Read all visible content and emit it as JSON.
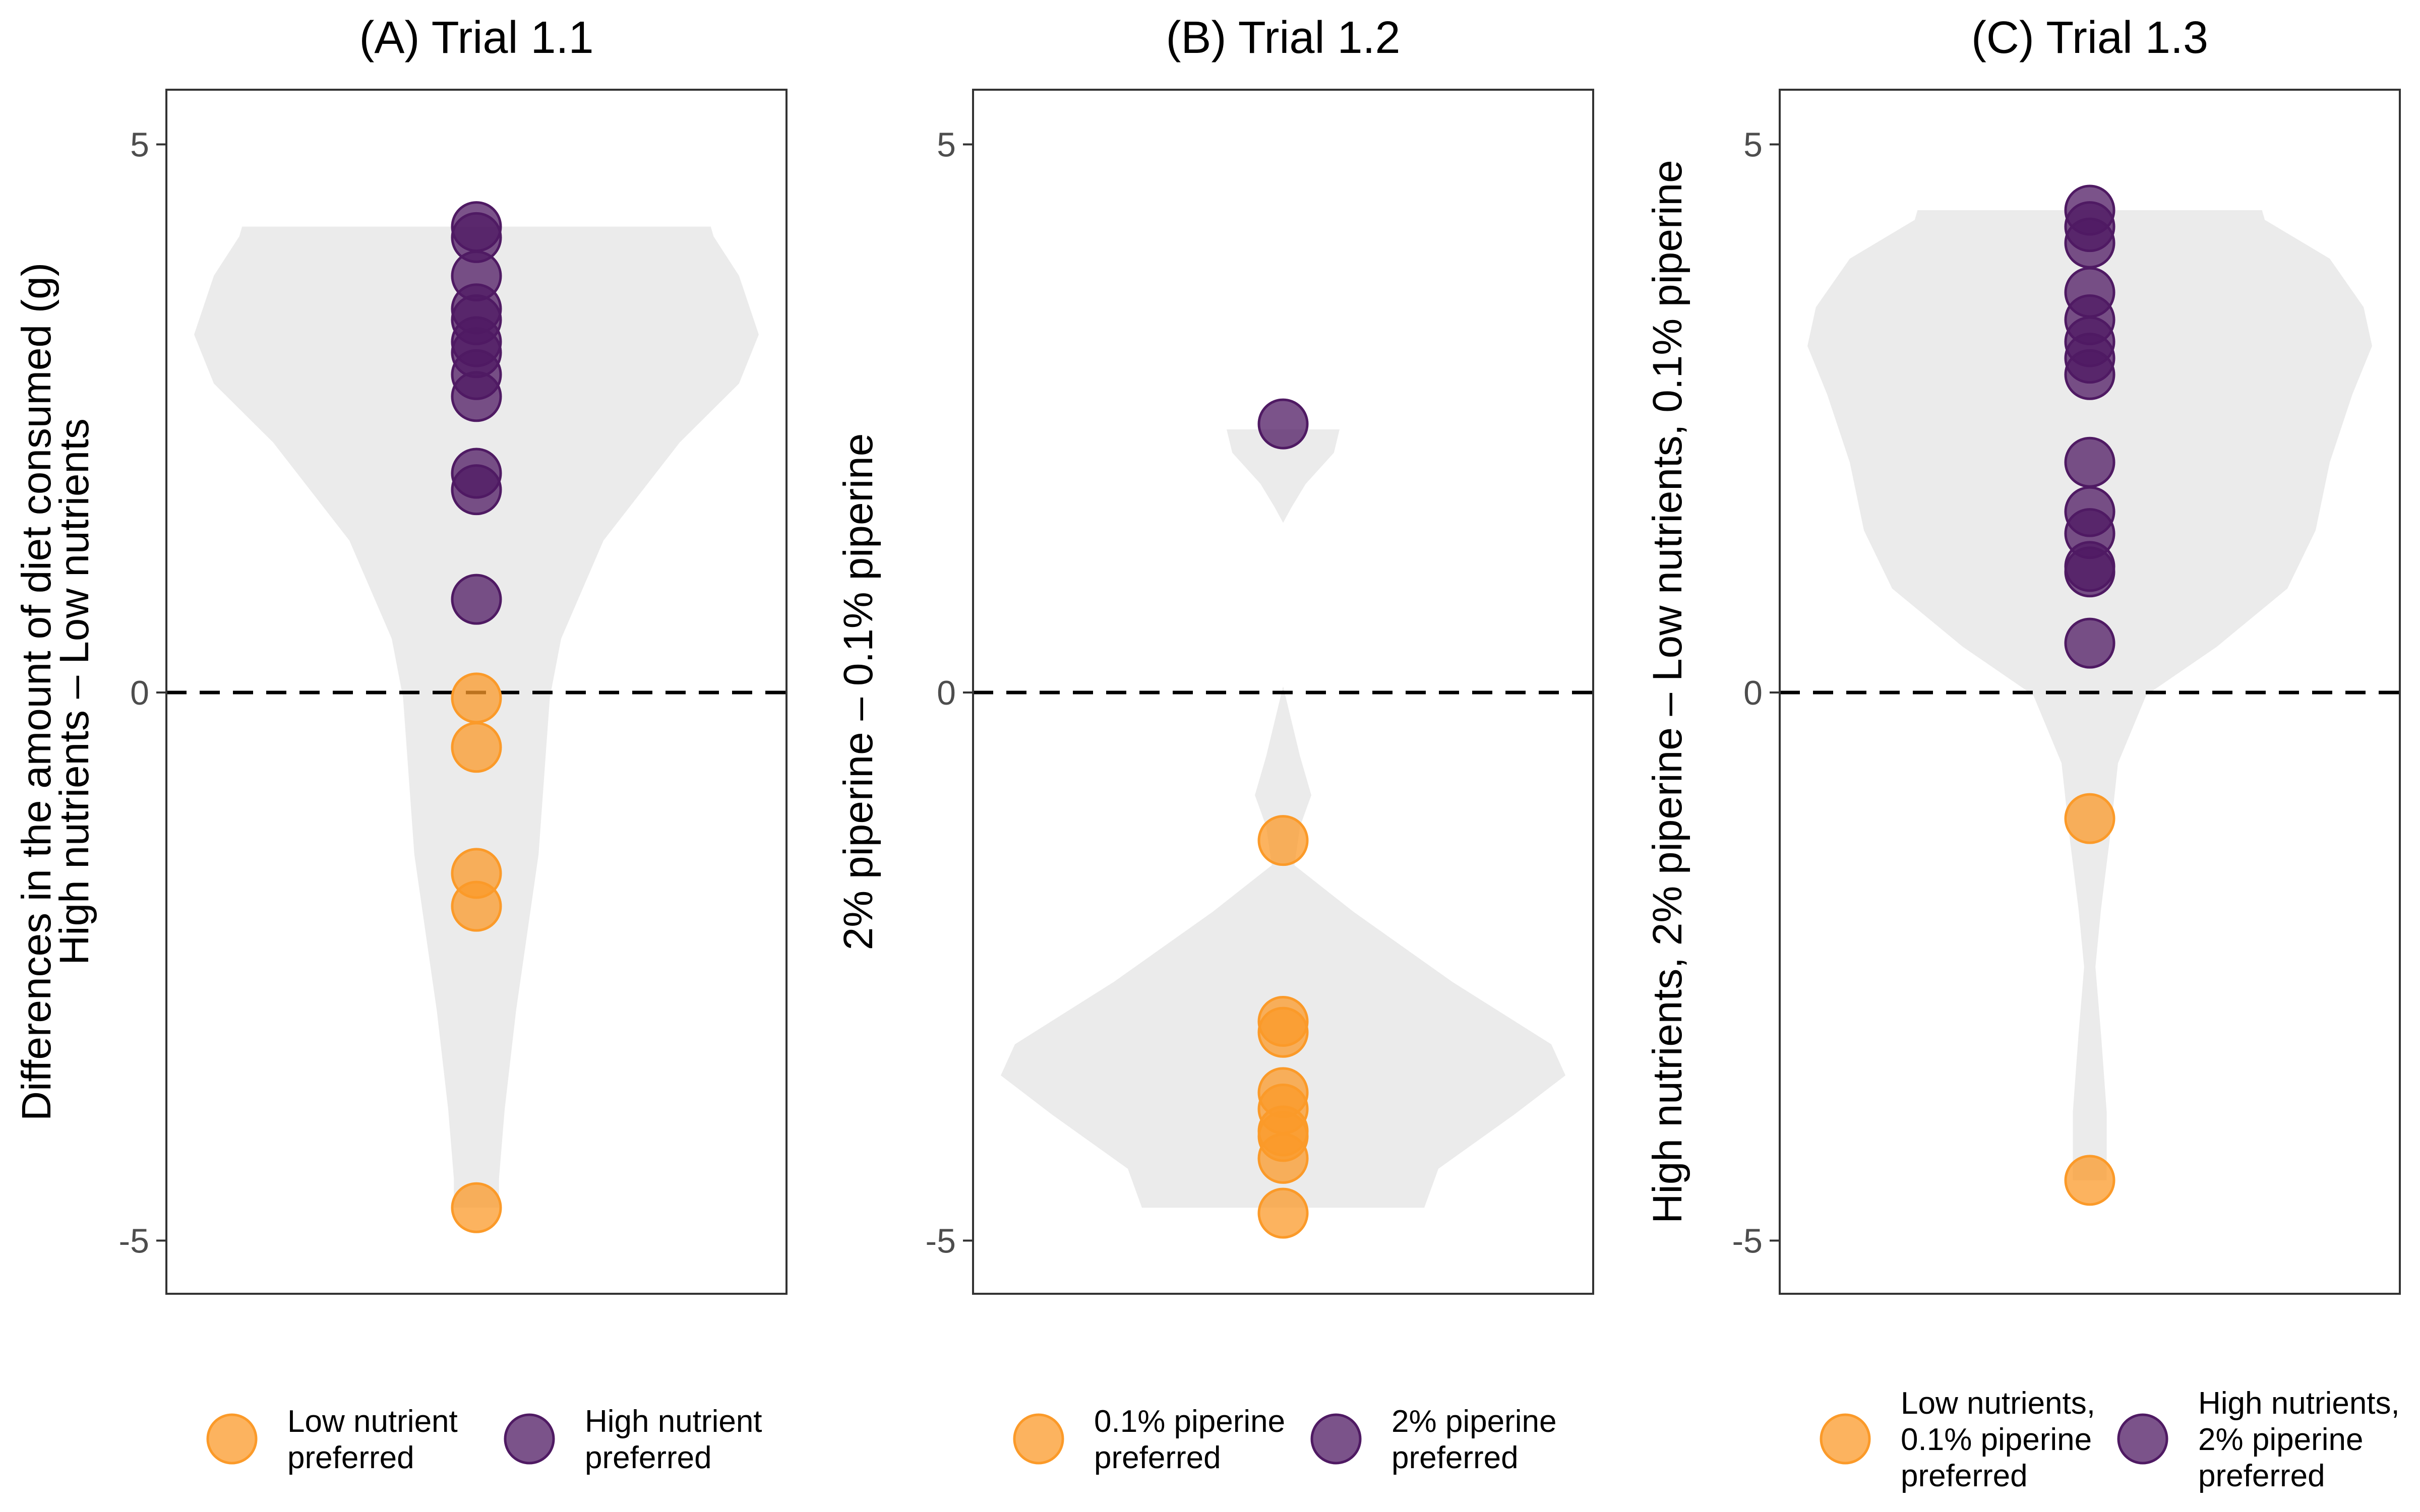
{
  "chart_data": [
    {
      "type": "scatter",
      "title": "(A) Trial 1.1",
      "ylabel": [
        "Differences in the amount of diet consumed (g)",
        "High nutrients – Low nutrients"
      ],
      "ylim": [
        -5.5,
        5.5
      ],
      "yticks": [
        5,
        0,
        -5
      ],
      "ytick_labels": [
        "5",
        "0",
        "-5"
      ],
      "reference_line": 0,
      "grid": false,
      "violin": {
        "min": -4.7,
        "max": 4.25
      },
      "points": [
        {
          "y": 4.25,
          "group": "high"
        },
        {
          "y": 4.15,
          "group": "high"
        },
        {
          "y": 3.8,
          "group": "high"
        },
        {
          "y": 3.5,
          "group": "high"
        },
        {
          "y": 3.4,
          "group": "high"
        },
        {
          "y": 3.2,
          "group": "high"
        },
        {
          "y": 3.1,
          "group": "high"
        },
        {
          "y": 2.9,
          "group": "high"
        },
        {
          "y": 2.7,
          "group": "high"
        },
        {
          "y": 2.0,
          "group": "high"
        },
        {
          "y": 1.85,
          "group": "high"
        },
        {
          "y": 0.85,
          "group": "high"
        },
        {
          "y": -0.05,
          "group": "low"
        },
        {
          "y": -0.5,
          "group": "low"
        },
        {
          "y": -1.65,
          "group": "low"
        },
        {
          "y": -1.95,
          "group": "low"
        },
        {
          "y": -4.7,
          "group": "low"
        }
      ],
      "legend": [
        {
          "key": "low",
          "lines": [
            "Low nutrient",
            "preferred"
          ]
        },
        {
          "key": "high",
          "lines": [
            "High nutrient",
            "preferred"
          ]
        }
      ]
    },
    {
      "type": "scatter",
      "title": "(B) Trial 1.2",
      "ylabel": [
        "2% piperine – 0.1% piperine"
      ],
      "ylim": [
        -5.5,
        5.5
      ],
      "yticks": [
        5,
        0,
        -5
      ],
      "ytick_labels": [
        "5",
        "0",
        "-5"
      ],
      "reference_line": 0,
      "grid": false,
      "violin": {
        "min": -4.7,
        "max": 2.4
      },
      "points": [
        {
          "y": 2.45,
          "group": "high"
        },
        {
          "y": -1.35,
          "group": "low"
        },
        {
          "y": -3.0,
          "group": "low"
        },
        {
          "y": -3.1,
          "group": "low"
        },
        {
          "y": -3.65,
          "group": "low"
        },
        {
          "y": -3.8,
          "group": "low"
        },
        {
          "y": -4.0,
          "group": "low"
        },
        {
          "y": -4.05,
          "group": "low"
        },
        {
          "y": -4.25,
          "group": "low"
        },
        {
          "y": -4.75,
          "group": "low"
        }
      ],
      "legend": [
        {
          "key": "low",
          "lines": [
            "0.1% piperine",
            "preferred"
          ]
        },
        {
          "key": "high",
          "lines": [
            "2% piperine",
            "preferred"
          ]
        }
      ]
    },
    {
      "type": "scatter",
      "title": "(C) Trial 1.3",
      "ylabel": [
        "High nutrients, 2% piperine – Low nutrients, 0.1% piperine"
      ],
      "ylim": [
        -5.5,
        5.5
      ],
      "yticks": [
        5,
        0,
        -5
      ],
      "ytick_labels": [
        "5",
        "0",
        "-5"
      ],
      "reference_line": 0,
      "grid": false,
      "violin": {
        "min": -4.45,
        "max": 4.4
      },
      "points": [
        {
          "y": 4.4,
          "group": "high"
        },
        {
          "y": 4.25,
          "group": "high"
        },
        {
          "y": 4.1,
          "group": "high"
        },
        {
          "y": 3.65,
          "group": "high"
        },
        {
          "y": 3.4,
          "group": "high"
        },
        {
          "y": 3.2,
          "group": "high"
        },
        {
          "y": 3.05,
          "group": "high"
        },
        {
          "y": 2.9,
          "group": "high"
        },
        {
          "y": 2.1,
          "group": "high"
        },
        {
          "y": 1.65,
          "group": "high"
        },
        {
          "y": 1.45,
          "group": "high"
        },
        {
          "y": 1.15,
          "group": "high"
        },
        {
          "y": 1.1,
          "group": "high"
        },
        {
          "y": 0.45,
          "group": "high"
        },
        {
          "y": -1.15,
          "group": "low"
        },
        {
          "y": -4.45,
          "group": "low"
        }
      ],
      "legend": [
        {
          "key": "low",
          "lines": [
            "Low nutrients,",
            "0.1% piperine",
            "preferred"
          ]
        },
        {
          "key": "high",
          "lines": [
            "High nutrients,",
            "2% piperine",
            "preferred"
          ]
        }
      ]
    }
  ],
  "colors": {
    "low": "#fb9a29",
    "high": "#4f1a63",
    "violin": "#ebebeb",
    "axis": "#333333",
    "tick_label": "#4d4d4d",
    "text": "#000000"
  }
}
